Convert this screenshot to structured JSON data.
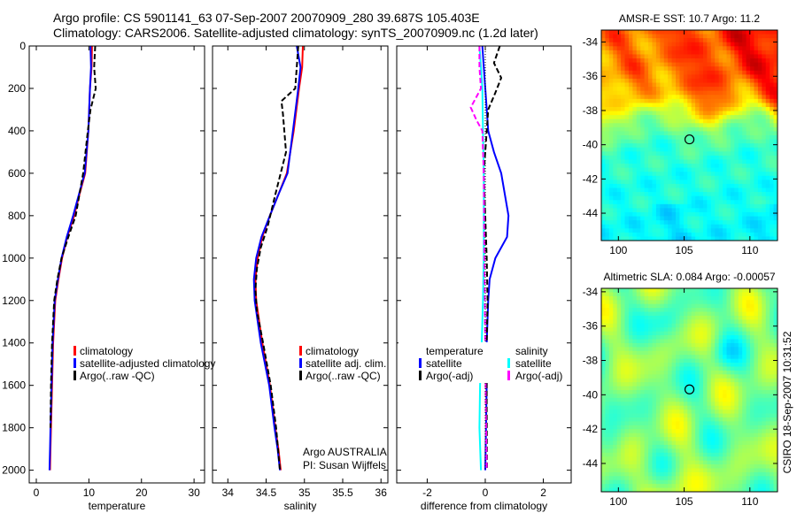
{
  "title_line1": "Argo profile: CS 5901141_63 07-Sep-2007 20070909_280 39.687S 105.403E",
  "title_line2": "Climatology: CARS2006. Satellite-adjusted climatology: synTS_20070909.nc (1.2d later)",
  "footer_stamp": "CSIRO 18-Sep-2007 10:31:52",
  "chart_data": [
    {
      "type": "line",
      "id": "temperature",
      "xlabel": "temperature",
      "ylabel": "depth",
      "xlim": [
        -1.35,
        32
      ],
      "ylim": [
        0,
        2060
      ],
      "xticks": [
        0,
        10,
        20,
        30
      ],
      "yticks": [
        0,
        200,
        400,
        600,
        800,
        1000,
        1200,
        1400,
        1600,
        1800,
        2000
      ],
      "legend": [
        "climatology",
        "satellite-adjusted climatology",
        "Argo(..raw -QC)"
      ],
      "series": [
        {
          "name": "climatology",
          "color": "#ff0000",
          "dash": false,
          "x": [
            10.6,
            10.5,
            10.2,
            9.9,
            9.3,
            8.2,
            7.2,
            5.9,
            4.9,
            4.2,
            3.6,
            3.2,
            3.0,
            2.8,
            2.7,
            2.6
          ],
          "y": [
            0,
            100,
            200,
            400,
            600,
            700,
            800,
            900,
            1000,
            1100,
            1200,
            1400,
            1600,
            1800,
            1900,
            2000
          ]
        },
        {
          "name": "satellite-adjusted climatology",
          "color": "#0000ff",
          "dash": false,
          "x": [
            10.3,
            10.4,
            10.2,
            9.9,
            9.2,
            8.1,
            7.0,
            5.8,
            4.8,
            4.1,
            3.5,
            3.1,
            2.9,
            2.7,
            2.6,
            2.5
          ],
          "y": [
            0,
            100,
            200,
            400,
            600,
            700,
            800,
            900,
            1000,
            1100,
            1200,
            1400,
            1600,
            1800,
            1900,
            2000
          ]
        },
        {
          "name": "Argo(..raw -QC)",
          "color": "#000000",
          "dash": true,
          "x": [
            11.2,
            11.0,
            11.3,
            10.3,
            9.8,
            8.9,
            7.5,
            6.1,
            4.8,
            4.0,
            3.4,
            3.0,
            2.8,
            2.7
          ],
          "y": [
            0,
            100,
            200,
            300,
            400,
            600,
            800,
            900,
            1000,
            1100,
            1200,
            1400,
            1600,
            1800
          ]
        }
      ],
      "annotations": []
    },
    {
      "type": "line",
      "id": "salinity",
      "xlabel": "salinity",
      "xlim": [
        33.8,
        36.09
      ],
      "ylim": [
        0,
        2060
      ],
      "xticks": [
        34,
        34.5,
        35,
        35.5,
        36
      ],
      "yticks": [
        0,
        200,
        400,
        600,
        800,
        1000,
        1200,
        1400,
        1600,
        1800,
        2000
      ],
      "legend": [
        "climatology",
        "satellite adj. clim.",
        "Argo(..raw -QC)"
      ],
      "series": [
        {
          "name": "climatology",
          "color": "#ff0000",
          "dash": false,
          "x": [
            34.98,
            34.97,
            34.93,
            34.86,
            34.77,
            34.66,
            34.55,
            34.45,
            34.39,
            34.36,
            34.37,
            34.45,
            34.55,
            34.62,
            34.66,
            34.69
          ],
          "y": [
            0,
            100,
            200,
            400,
            600,
            700,
            800,
            900,
            1000,
            1100,
            1200,
            1400,
            1600,
            1800,
            1900,
            2000
          ]
        },
        {
          "name": "satellite adj. clim.",
          "color": "#0000ff",
          "dash": false,
          "x": [
            34.9,
            34.95,
            34.92,
            34.85,
            34.78,
            34.66,
            34.55,
            34.44,
            34.37,
            34.34,
            34.35,
            34.43,
            34.54,
            34.61,
            34.65,
            34.68
          ],
          "y": [
            0,
            100,
            200,
            400,
            600,
            700,
            800,
            900,
            1000,
            1100,
            1200,
            1400,
            1600,
            1800,
            1900,
            2000
          ]
        },
        {
          "name": "Argo(..raw -QC)",
          "color": "#000000",
          "dash": true,
          "x": [
            34.92,
            34.9,
            34.88,
            34.7,
            34.72,
            34.76,
            34.62,
            34.52,
            34.43,
            34.38,
            34.36,
            34.38,
            34.46,
            34.56,
            34.63,
            34.68
          ],
          "y": [
            0,
            100,
            200,
            260,
            320,
            500,
            700,
            850,
            950,
            1050,
            1150,
            1250,
            1400,
            1600,
            1800,
            2000
          ]
        }
      ],
      "annotations": [
        "Argo AUSTRALIA",
        "PI: Susan Wijffels"
      ]
    },
    {
      "type": "line",
      "id": "difference",
      "xlabel": "difference from climatology",
      "xlim": [
        -3.05,
        2.96
      ],
      "ylim": [
        0,
        2060
      ],
      "xticks": [
        -2,
        0,
        2
      ],
      "yticks": [
        0,
        200,
        400,
        600,
        800,
        1000,
        1200,
        1400,
        1600,
        1800,
        2000
      ],
      "legend_groups": [
        {
          "title": "temperature",
          "items": [
            "satellite",
            "Argo(-adj)"
          ]
        },
        {
          "title": "salinity",
          "items": [
            "satellite",
            "Argo(-adj)"
          ]
        }
      ],
      "series": [
        {
          "name": "temperature satellite",
          "color": "#0000ff",
          "dash": false,
          "x": [
            -0.1,
            -0.05,
            0.0,
            0.1,
            0.3,
            0.55,
            0.8,
            0.75,
            0.35,
            0.15,
            0.1,
            0.05,
            0.05,
            0.0
          ],
          "y": [
            0,
            100,
            200,
            400,
            500,
            600,
            800,
            900,
            1000,
            1100,
            1200,
            1400,
            1600,
            2000
          ]
        },
        {
          "name": "temperature Argo(-adj)",
          "color": "#000000",
          "dash": true,
          "x": [
            0.5,
            0.3,
            0.55,
            0.35,
            0.1,
            -0.05,
            0.05,
            0.08,
            0.05,
            0.05,
            0.06
          ],
          "y": [
            0,
            80,
            150,
            220,
            300,
            600,
            1000,
            1200,
            1400,
            1700,
            2000
          ]
        },
        {
          "name": "salinity satellite",
          "color": "#00ffff",
          "dash": false,
          "x": [
            -0.2,
            -0.15,
            -0.1,
            -0.08,
            -0.05,
            -0.05,
            -0.08,
            -0.12,
            -0.18,
            -0.2,
            -0.15
          ],
          "y": [
            0,
            100,
            200,
            400,
            600,
            1000,
            1200,
            1400,
            1600,
            1800,
            2000
          ]
        },
        {
          "name": "salinity Argo(-adj)",
          "color": "#ff00ff",
          "dash": true,
          "x": [
            -0.2,
            -0.2,
            -0.15,
            -0.5,
            -0.3,
            -0.1,
            -0.05,
            -0.03,
            0.0,
            0.02,
            0.05
          ],
          "y": [
            0,
            100,
            200,
            290,
            350,
            400,
            600,
            1000,
            1400,
            1700,
            2000
          ]
        },
        {
          "name": "zero reference",
          "color": "#000000",
          "dash": "dot",
          "x": [
            0,
            0
          ],
          "y": [
            0,
            2000
          ]
        }
      ],
      "annotations": []
    },
    {
      "type": "heatmap",
      "id": "sst-map",
      "title": "AMSR-E SST: 10.7 Argo: 11.2",
      "field": "sst",
      "xlim": [
        98.7,
        112.1
      ],
      "ylim": [
        -45.6,
        -33.3
      ],
      "xticks": [
        100,
        105,
        110
      ],
      "yticks": [
        -34,
        -36,
        -38,
        -40,
        -42,
        -44
      ],
      "argo_position": {
        "lon": 105.403,
        "lat": -39.687
      }
    },
    {
      "type": "heatmap",
      "id": "sla-map",
      "title": "Altimetric SLA: 0.084 Argo: -0.00057",
      "field": "sla",
      "xlim": [
        98.7,
        112.1
      ],
      "ylim": [
        -45.65,
        -33.8
      ],
      "xticks": [
        100,
        105,
        110
      ],
      "yticks": [
        -34,
        -36,
        -38,
        -40,
        -42,
        -44
      ],
      "argo_position": {
        "lon": 105.403,
        "lat": -39.687
      }
    }
  ]
}
